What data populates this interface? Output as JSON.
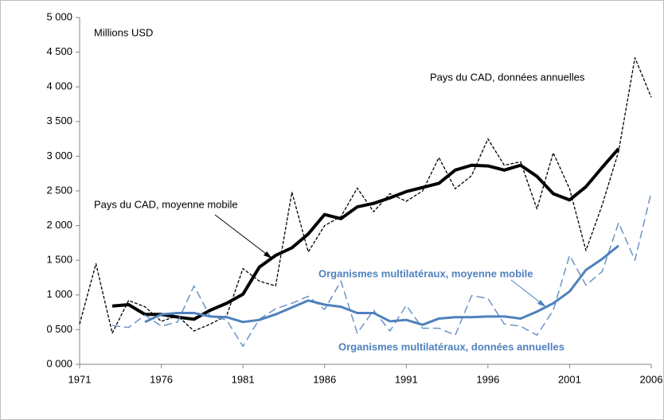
{
  "chart_data": {
    "type": "line",
    "annotations": [
      "Millions USD",
      "Pays du CAD, données annuelles",
      "Pays du CAD, moyenne mobile",
      "Organismes multilatéraux, moyenne mobile",
      "Organismes multilatéraux, données annuelles"
    ],
    "x": [
      1971,
      1972,
      1973,
      1974,
      1975,
      1976,
      1977,
      1978,
      1979,
      1980,
      1981,
      1982,
      1983,
      1984,
      1985,
      1986,
      1987,
      1988,
      1989,
      1990,
      1991,
      1992,
      1993,
      1994,
      1995,
      1996,
      1997,
      1998,
      1999,
      2000,
      2001,
      2002,
      2003,
      2004,
      2005,
      2006
    ],
    "xlim": [
      1971,
      2006
    ],
    "xticks": [
      1971,
      1976,
      1981,
      1986,
      1991,
      1996,
      2001,
      2006
    ],
    "ylim": [
      0,
      5000
    ],
    "yticks": [
      {
        "value": 0,
        "label": "0 000"
      },
      {
        "value": 500,
        "label": "0 500"
      },
      {
        "value": 1000,
        "label": "1 000"
      },
      {
        "value": 1500,
        "label": "1 500"
      },
      {
        "value": 2000,
        "label": "2 000"
      },
      {
        "value": 2500,
        "label": "2 500"
      },
      {
        "value": 3000,
        "label": "3 000"
      },
      {
        "value": 3500,
        "label": "3 500"
      },
      {
        "value": 4000,
        "label": "4 000"
      },
      {
        "value": 4500,
        "label": "4 500"
      },
      {
        "value": 5000,
        "label": "5 000"
      }
    ],
    "series": [
      {
        "name": "Pays du CAD, données annuelles",
        "color": "#000000",
        "dashed": true,
        "width": 1.3,
        "values": [
          580,
          1450,
          450,
          920,
          830,
          620,
          700,
          480,
          580,
          700,
          1380,
          1200,
          1130,
          2480,
          1620,
          2000,
          2130,
          2540,
          2200,
          2460,
          2350,
          2500,
          2980,
          2530,
          2720,
          3250,
          2870,
          2920,
          2240,
          3050,
          2530,
          1640,
          2300,
          3070,
          4420,
          3850
        ]
      },
      {
        "name": "Pays du CAD, moyenne mobile",
        "color": "#000000",
        "dashed": false,
        "width": 4,
        "values": [
          null,
          null,
          840,
          860,
          720,
          720,
          680,
          650,
          780,
          880,
          1010,
          1400,
          1570,
          1680,
          1880,
          2160,
          2100,
          2270,
          2320,
          2400,
          2490,
          2550,
          2610,
          2800,
          2870,
          2860,
          2800,
          2870,
          2710,
          2460,
          2370,
          2560,
          2840,
          3110,
          null,
          null
        ]
      },
      {
        "name": "Organismes multilatéraux, données annuelles",
        "color": "#6a93c8",
        "dashed": true,
        "width": 1.5,
        "values": [
          null,
          null,
          560,
          530,
          710,
          550,
          610,
          1130,
          690,
          640,
          260,
          650,
          800,
          880,
          980,
          790,
          1200,
          450,
          780,
          480,
          850,
          520,
          520,
          420,
          990,
          950,
          580,
          550,
          420,
          780,
          1570,
          1140,
          1340,
          2040,
          1500,
          2480
        ]
      },
      {
        "name": "Organismes multilatéraux, moyenne mobile",
        "color": "#4f81bd",
        "dashed": false,
        "width": 3,
        "values": [
          null,
          null,
          null,
          null,
          610,
          720,
          740,
          740,
          690,
          680,
          610,
          640,
          720,
          820,
          920,
          860,
          830,
          740,
          740,
          620,
          640,
          570,
          660,
          680,
          680,
          690,
          690,
          660,
          760,
          880,
          1050,
          1360,
          1520,
          1710,
          null,
          null
        ]
      }
    ]
  }
}
